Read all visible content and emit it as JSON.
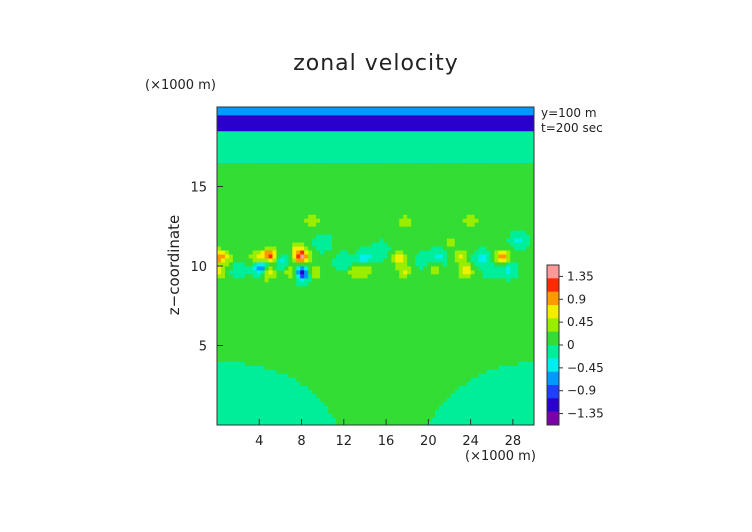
{
  "chart_data": {
    "type": "heatmap",
    "title": "zonal velocity",
    "xlabel": "",
    "ylabel": "z−coordinate",
    "x_unit": "(×1000 m)",
    "y_unit": "(×1000 m)",
    "annotations": [
      "y=100  m",
      "t=200 sec"
    ],
    "xlim": [
      0,
      30
    ],
    "ylim": [
      0,
      20
    ],
    "x_ticks": [
      4,
      8,
      12,
      16,
      20,
      24,
      28
    ],
    "y_ticks": [
      5,
      10,
      15
    ],
    "colorbar": {
      "labels": [
        "1.35",
        "0.9",
        "0.45",
        "0",
        "−0.45",
        "−0.9",
        "−1.35"
      ],
      "range": [
        -1.575,
        1.575
      ],
      "colors": [
        "#ff9999",
        "#ff2a00",
        "#ff9900",
        "#f2ee00",
        "#99ee00",
        "#33dd33",
        "#00ee99",
        "#00eeee",
        "#0099ff",
        "#1f3fff",
        "#2a00cc",
        "#7a00aa"
      ]
    },
    "field": {
      "background": 0.04,
      "top_jet": {
        "z_top": 19.6,
        "z_bottom": 18.4,
        "value": -1.2
      },
      "features": [
        {
          "x": 0.2,
          "z": 10.6,
          "v": 0.9
        },
        {
          "x": 0.2,
          "z": 9.6,
          "v": 0.6
        },
        {
          "x": 1.2,
          "z": 10.5,
          "v": 0.3
        },
        {
          "x": 2.0,
          "z": 9.8,
          "v": -0.3
        },
        {
          "x": 3.8,
          "z": 10.5,
          "v": 0.55
        },
        {
          "x": 4.2,
          "z": 9.9,
          "v": -1.0
        },
        {
          "x": 4.8,
          "z": 9.6,
          "v": 0.8
        },
        {
          "x": 5.0,
          "z": 10.7,
          "v": 1.1
        },
        {
          "x": 6.0,
          "z": 10.3,
          "v": -0.4
        },
        {
          "x": 7.2,
          "z": 9.6,
          "v": 0.7
        },
        {
          "x": 7.6,
          "z": 11.2,
          "v": 0.45
        },
        {
          "x": 8.0,
          "z": 10.6,
          "v": 1.3
        },
        {
          "x": 8.0,
          "z": 9.6,
          "v": -1.3
        },
        {
          "x": 9.3,
          "z": 9.7,
          "v": 0.5
        },
        {
          "x": 9.0,
          "z": 12.9,
          "v": 0.45
        },
        {
          "x": 10.0,
          "z": 11.5,
          "v": -0.3
        },
        {
          "x": 12.0,
          "z": 10.3,
          "v": -0.3
        },
        {
          "x": 13.0,
          "z": 9.6,
          "v": 0.4
        },
        {
          "x": 14.0,
          "z": 10.5,
          "v": -0.55
        },
        {
          "x": 14.2,
          "z": 9.8,
          "v": 0.5
        },
        {
          "x": 15.5,
          "z": 11.0,
          "v": -0.3
        },
        {
          "x": 17.2,
          "z": 10.5,
          "v": 0.7
        },
        {
          "x": 17.8,
          "z": 9.7,
          "v": 0.5
        },
        {
          "x": 17.8,
          "z": 12.8,
          "v": 0.45
        },
        {
          "x": 19.5,
          "z": 10.3,
          "v": -0.3
        },
        {
          "x": 20.5,
          "z": 9.8,
          "v": 0.4
        },
        {
          "x": 21.0,
          "z": 10.6,
          "v": -0.4
        },
        {
          "x": 22.0,
          "z": 11.5,
          "v": 0.3
        },
        {
          "x": 23.0,
          "z": 10.6,
          "v": 0.5
        },
        {
          "x": 23.5,
          "z": 9.7,
          "v": 0.7
        },
        {
          "x": 24.0,
          "z": 12.9,
          "v": 0.45
        },
        {
          "x": 25.0,
          "z": 10.5,
          "v": -0.4
        },
        {
          "x": 26.0,
          "z": 9.8,
          "v": -0.3
        },
        {
          "x": 27.0,
          "z": 10.6,
          "v": 0.9
        },
        {
          "x": 27.5,
          "z": 9.8,
          "v": -0.4
        },
        {
          "x": 28.5,
          "z": 11.6,
          "v": -0.35
        }
      ]
    }
  }
}
